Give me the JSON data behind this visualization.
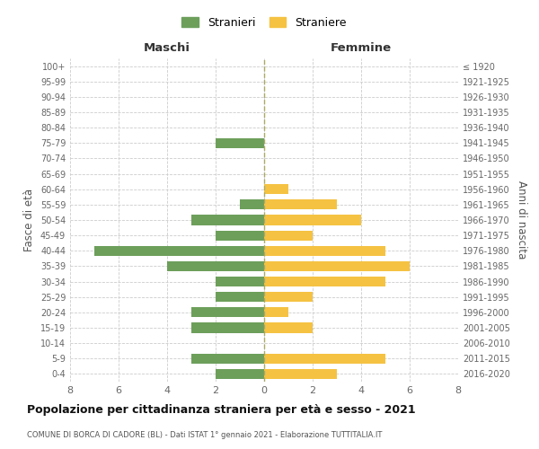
{
  "age_groups": [
    "0-4",
    "5-9",
    "10-14",
    "15-19",
    "20-24",
    "25-29",
    "30-34",
    "35-39",
    "40-44",
    "45-49",
    "50-54",
    "55-59",
    "60-64",
    "65-69",
    "70-74",
    "75-79",
    "80-84",
    "85-89",
    "90-94",
    "95-99",
    "100+"
  ],
  "birth_years": [
    "2016-2020",
    "2011-2015",
    "2006-2010",
    "2001-2005",
    "1996-2000",
    "1991-1995",
    "1986-1990",
    "1981-1985",
    "1976-1980",
    "1971-1975",
    "1966-1970",
    "1961-1965",
    "1956-1960",
    "1951-1955",
    "1946-1950",
    "1941-1945",
    "1936-1940",
    "1931-1935",
    "1926-1930",
    "1921-1925",
    "≤ 1920"
  ],
  "maschi": [
    2,
    3,
    0,
    3,
    3,
    2,
    2,
    4,
    7,
    2,
    3,
    1,
    0,
    0,
    0,
    2,
    0,
    0,
    0,
    0,
    0
  ],
  "femmine": [
    3,
    5,
    0,
    2,
    1,
    2,
    5,
    6,
    5,
    2,
    4,
    3,
    1,
    0,
    0,
    0,
    0,
    0,
    0,
    0,
    0
  ],
  "color_maschi": "#6d9f5b",
  "color_femmine": "#f5c242",
  "title": "Popolazione per cittadinanza straniera per età e sesso - 2021",
  "subtitle": "COMUNE DI BORCA DI CADORE (BL) - Dati ISTAT 1° gennaio 2021 - Elaborazione TUTTITALIA.IT",
  "ylabel_left": "Fasce di età",
  "ylabel_right": "Anni di nascita",
  "xlabel_maschi": "Maschi",
  "xlabel_femmine": "Femmine",
  "legend_maschi": "Stranieri",
  "legend_femmine": "Straniere",
  "xlim": 8,
  "background_color": "#ffffff",
  "grid_color": "#cccccc"
}
